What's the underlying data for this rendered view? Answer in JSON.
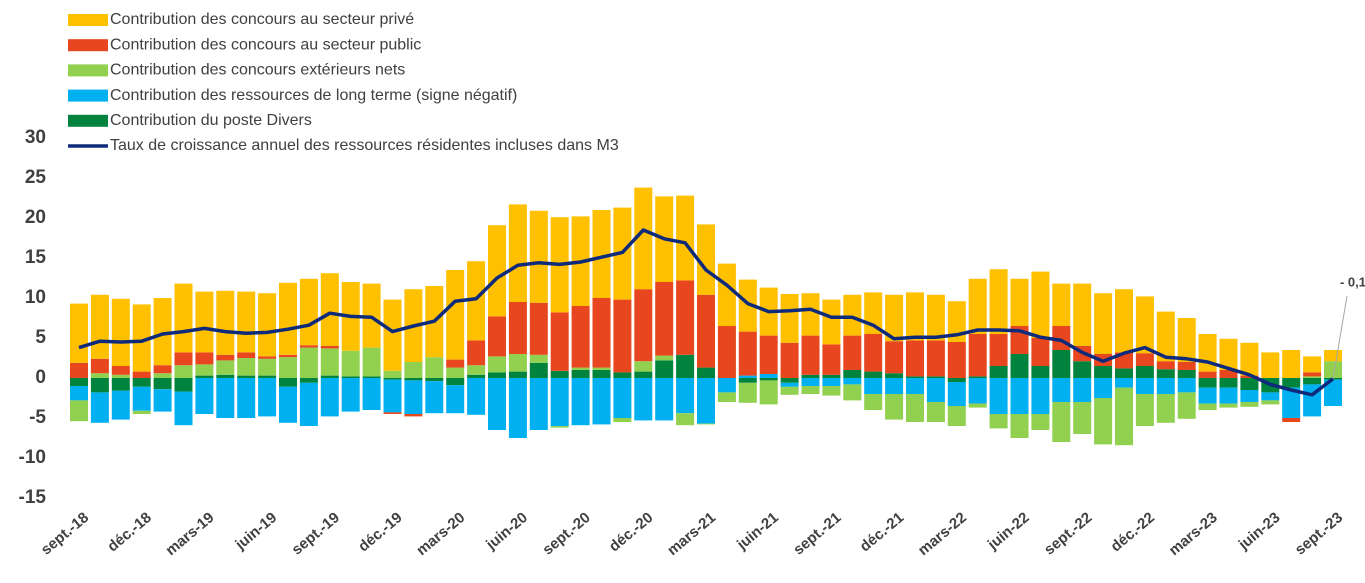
{
  "chart_data": {
    "type": "bar",
    "categories": [
      "sept.-18",
      null,
      null,
      "déc.-18",
      null,
      null,
      "mars-19",
      null,
      null,
      "juin-19",
      null,
      null,
      "sept.-19",
      null,
      null,
      "déc.-19",
      null,
      null,
      "mars-20",
      null,
      null,
      "juin-20",
      null,
      null,
      "sept.-20",
      null,
      null,
      "déc.-20",
      null,
      null,
      "mars-21",
      null,
      null,
      "juin-21",
      null,
      null,
      "sept.-21",
      null,
      null,
      "déc.-21",
      null,
      null,
      "mars-22",
      null,
      null,
      "juin-22",
      null,
      null,
      "sept.-22",
      null,
      null,
      "déc.-22",
      null,
      null,
      "mars-23",
      null,
      null,
      "juin-23",
      null,
      null,
      "sept.-23"
    ],
    "series": [
      {
        "name": "Contribution des concours au secteur privé",
        "color": "#FFC000",
        "values": [
          7.4,
          8.0,
          8.4,
          8.4,
          8.4,
          8.6,
          7.6,
          8.0,
          7.6,
          7.9,
          9.0,
          8.3,
          9.1,
          8.6,
          8.0,
          8.9,
          9.1,
          8.9,
          11.2,
          9.9,
          11.4,
          12.2,
          11.5,
          11.9,
          11.2,
          11.0,
          11.5,
          12.7,
          10.7,
          10.6,
          8.8,
          7.8,
          6.5,
          6.0,
          6.1,
          5.3,
          5.6,
          5.1,
          5.2,
          5.8,
          6.0,
          5.7,
          5.1,
          6.9,
          8.1,
          5.9,
          8.3,
          5.3,
          7.8,
          7.6,
          7.9,
          7.1,
          6.2,
          5.5,
          4.7,
          3.9,
          4.1,
          3.2,
          3.5,
          2.0,
          1.4
        ]
      },
      {
        "name": "Contribution des concours au secteur public",
        "color": "#E8461E",
        "values": [
          1.9,
          1.8,
          1.1,
          0.8,
          1.0,
          1.6,
          1.5,
          0.7,
          0.7,
          0.3,
          0.3,
          0.3,
          0.3,
          0,
          0,
          -0.2,
          -0.3,
          0,
          1.0,
          3.1,
          5.0,
          6.5,
          6.5,
          7.3,
          7.7,
          8.7,
          9.1,
          9.0,
          9.2,
          9.3,
          9.1,
          6.5,
          5.5,
          4.8,
          4.4,
          4.9,
          3.8,
          4.3,
          4.7,
          4.0,
          4.5,
          4.5,
          4.5,
          5.3,
          4.0,
          3.5,
          3.5,
          3.0,
          1.9,
          1.5,
          2.0,
          1.6,
          1.0,
          1.0,
          0.8,
          1.0,
          0.3,
          0,
          -0.5,
          0.5,
          0
        ]
      },
      {
        "name": "Contribution des concours extérieurs nets",
        "color": "#92D050",
        "values": [
          -2.6,
          0.6,
          0.4,
          -0.4,
          0.6,
          1.6,
          1.4,
          1.8,
          2.2,
          2.1,
          2.6,
          3.8,
          3.4,
          3.2,
          3.6,
          0.9,
          2.0,
          2.6,
          1.3,
          1.2,
          2.0,
          2.2,
          1.0,
          -0.2,
          0.3,
          0.3,
          -0.5,
          1.3,
          0.6,
          -1.5,
          -0.1,
          -1.2,
          -2.5,
          -3.0,
          -1.0,
          -1.0,
          -1.2,
          -2.0,
          -2.0,
          -3.2,
          -3.5,
          -2.5,
          -2.5,
          -0.5,
          -1.8,
          -3.0,
          -2.0,
          -5.0,
          -4.0,
          -5.8,
          -7.2,
          -4.0,
          -3.6,
          -3.3,
          -0.8,
          -0.5,
          -0.6,
          -0.5,
          0,
          0.2,
          2.1
        ]
      },
      {
        "name": "Contribution des ressources de long terme (signe négatif)",
        "color": "#00B0F0",
        "values": [
          -1.8,
          -3.8,
          -3.6,
          -3.0,
          -2.8,
          -4.2,
          -4.5,
          -5.0,
          -5.0,
          -4.8,
          -4.5,
          -5.4,
          -4.8,
          -4.2,
          -4.0,
          -4.1,
          -4.2,
          -4.0,
          -3.5,
          -4.6,
          -6.5,
          -7.5,
          -6.5,
          -6.0,
          -5.9,
          -5.8,
          -5.0,
          -5.3,
          -5.3,
          -4.4,
          -5.7,
          -1.8,
          0.3,
          0.5,
          -0.5,
          -1.0,
          -1.0,
          -0.8,
          -2.0,
          -2.0,
          -2.0,
          -3.0,
          -3.0,
          -3.2,
          -4.5,
          -4.5,
          -4.5,
          -3.0,
          -3.0,
          -2.5,
          -1.2,
          -2.0,
          -2.0,
          -1.8,
          -2.0,
          -2.0,
          -1.5,
          -1.0,
          -3.8,
          -4.0,
          -3.3
        ]
      },
      {
        "name": "Contribution du poste Divers",
        "color": "#00843D",
        "values": [
          -1.0,
          -1.8,
          -1.6,
          -1.1,
          -1.4,
          -1.7,
          0.3,
          0.4,
          0.3,
          0.3,
          -1.1,
          -0.6,
          0.3,
          0.2,
          0.2,
          -0.2,
          -0.3,
          -0.4,
          -0.9,
          0.4,
          0.7,
          0.8,
          1.9,
          0.9,
          1.0,
          1.0,
          0.7,
          0.8,
          2.2,
          2.9,
          1.3,
          0,
          -0.6,
          -0.3,
          -0.6,
          0.4,
          0.4,
          1.0,
          0.8,
          0.6,
          0.2,
          0.2,
          -0.5,
          0.2,
          1.5,
          3.0,
          1.5,
          3.5,
          2.1,
          1.5,
          1.2,
          1.5,
          1.1,
          1.0,
          -1.2,
          -1.2,
          -1.5,
          -1.8,
          -1.2,
          -0.8,
          -0.2
        ]
      },
      {
        "name": "Taux de croissance annuel des ressources résidentes incluses dans M3",
        "color": "#0E2A7A",
        "type": "line",
        "values": [
          3.8,
          4.6,
          4.5,
          4.6,
          5.5,
          5.8,
          6.2,
          5.8,
          5.6,
          5.7,
          6.1,
          6.6,
          8.1,
          7.7,
          7.6,
          5.8,
          6.5,
          7.1,
          9.6,
          9.9,
          12.5,
          14.1,
          14.4,
          14.2,
          14.5,
          15.1,
          15.7,
          18.5,
          17.4,
          16.9,
          13.5,
          11.6,
          9.3,
          8.3,
          8.4,
          8.6,
          7.6,
          7.6,
          6.6,
          4.9,
          5.1,
          5.1,
          5.4,
          6.0,
          6.0,
          5.9,
          5.1,
          4.7,
          3.2,
          2.1,
          3.1,
          3.8,
          2.6,
          2.4,
          2.0,
          1.2,
          0.4,
          -0.8,
          -1.5,
          -2.1,
          -0.1
        ],
        "value_labels": [
          null,
          null,
          null,
          null,
          null,
          null,
          null,
          null,
          null,
          null,
          null,
          null,
          null,
          null,
          null,
          null,
          null,
          null,
          null,
          null,
          null,
          null,
          null,
          null,
          null,
          null,
          null,
          null,
          null,
          null,
          null,
          null,
          null,
          null,
          null,
          null,
          null,
          null,
          null,
          null,
          null,
          null,
          null,
          null,
          null,
          null,
          null,
          null,
          null,
          null,
          null,
          null,
          null,
          null,
          null,
          null,
          null,
          null,
          null,
          null,
          "- 0,1"
        ]
      }
    ],
    "ylim": [
      -15,
      30
    ],
    "yticks": [
      -15,
      -10,
      -5,
      0,
      5,
      10,
      15,
      20,
      25,
      30
    ],
    "grid": false,
    "legend": "top-left"
  }
}
